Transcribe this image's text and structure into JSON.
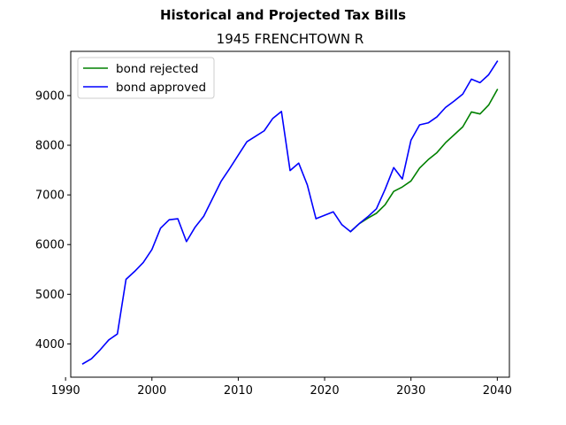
{
  "chart_data": {
    "type": "line",
    "suptitle": "Historical and Projected Tax Bills",
    "title": "1945 FRENCHTOWN R",
    "xlabel": "",
    "ylabel": "",
    "xlim": [
      1990.6,
      2041.4
    ],
    "ylim": [
      3330,
      9890
    ],
    "xticks": [
      1990,
      2000,
      2010,
      2020,
      2030,
      2040
    ],
    "yticks": [
      4000,
      5000,
      6000,
      7000,
      8000,
      9000
    ],
    "grid": false,
    "legend_position": "upper left",
    "series": [
      {
        "name": "bond rejected",
        "color": "#008000",
        "x": [
          2023,
          2024,
          2025,
          2026,
          2027,
          2028,
          2029,
          2030,
          2031,
          2032,
          2033,
          2034,
          2035,
          2036,
          2037,
          2038,
          2039,
          2040
        ],
        "y": [
          6260,
          6420,
          6530,
          6630,
          6800,
          7070,
          7160,
          7280,
          7540,
          7710,
          7850,
          8050,
          8210,
          8370,
          8670,
          8630,
          8810,
          9120
        ]
      },
      {
        "name": "bond approved",
        "color": "#0000ff",
        "x": [
          1992,
          1993,
          1994,
          1995,
          1996,
          1997,
          1998,
          1999,
          2000,
          2001,
          2002,
          2003,
          2004,
          2005,
          2006,
          2007,
          2008,
          2009,
          2010,
          2011,
          2012,
          2013,
          2014,
          2015,
          2016,
          2017,
          2018,
          2019,
          2020,
          2021,
          2022,
          2023,
          2024,
          2025,
          2026,
          2027,
          2028,
          2029,
          2030,
          2031,
          2032,
          2033,
          2034,
          2035,
          2036,
          2037,
          2038,
          2039,
          2040
        ],
        "y": [
          3600,
          3700,
          3880,
          4080,
          4200,
          5300,
          5460,
          5640,
          5900,
          6330,
          6500,
          6520,
          6060,
          6350,
          6570,
          6920,
          7270,
          7530,
          7800,
          8070,
          8180,
          8290,
          8540,
          8680,
          7490,
          7640,
          7200,
          6520,
          6590,
          6660,
          6400,
          6260,
          6420,
          6560,
          6720,
          7110,
          7550,
          7320,
          8100,
          8410,
          8450,
          8570,
          8760,
          8890,
          9030,
          9330,
          9260,
          9420,
          9690
        ]
      }
    ]
  }
}
